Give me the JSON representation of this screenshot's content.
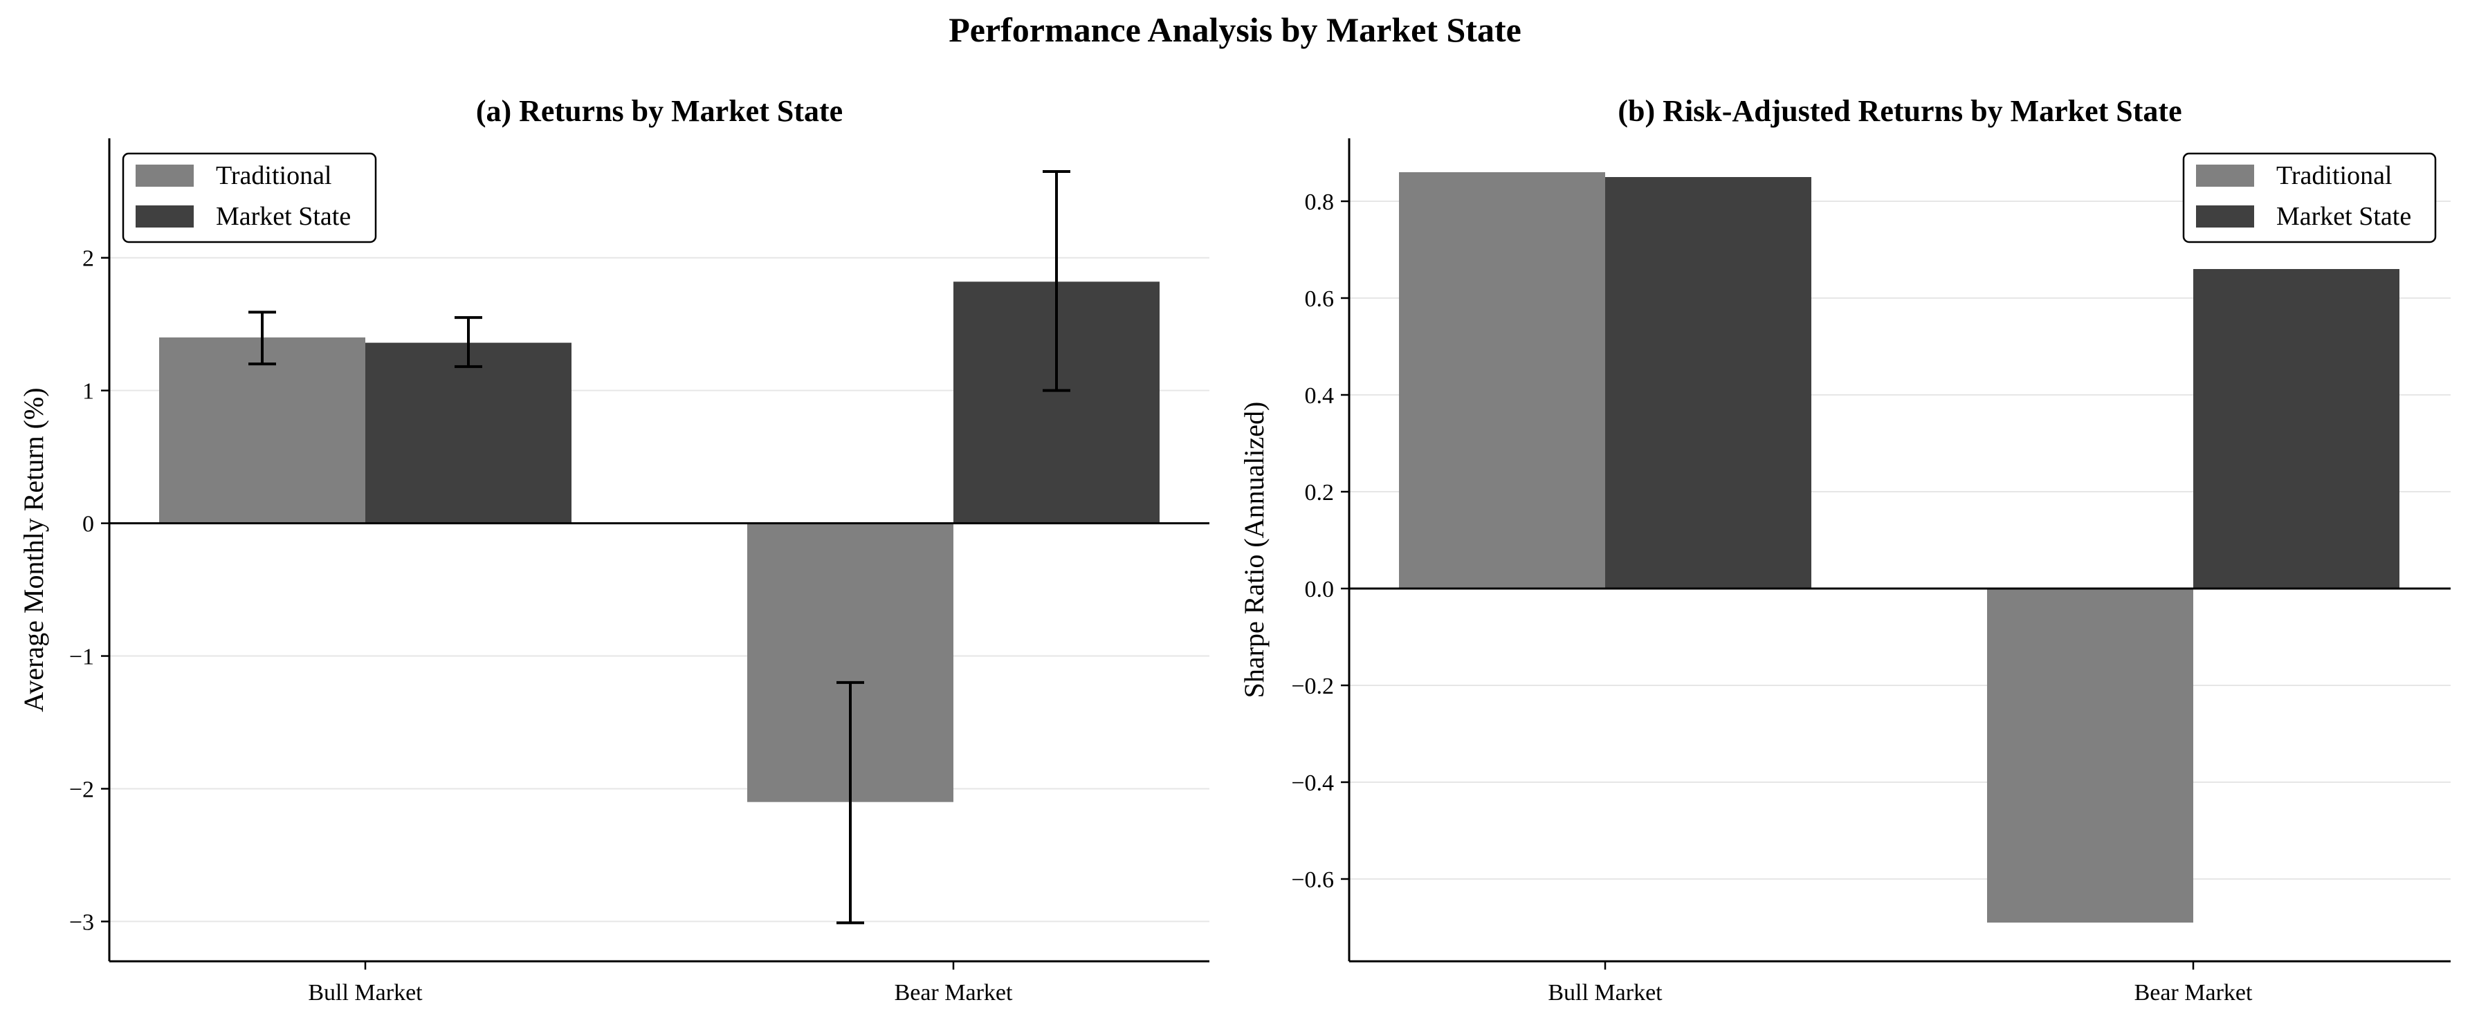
{
  "figure": {
    "title": "Performance Analysis by Market State"
  },
  "colors": {
    "traditional": "#808080",
    "market_state": "#404040",
    "grid": "#e6e6e6",
    "axis": "#000000"
  },
  "chart_data": [
    {
      "type": "bar",
      "title": "(a) Returns by Market State",
      "xlabel": "",
      "ylabel": "Average Monthly Return (%)",
      "categories": [
        "Bull Market",
        "Bear Market"
      ],
      "series": [
        {
          "name": "Traditional",
          "color": "#808080",
          "values": [
            1.4,
            -2.1
          ],
          "error_low": [
            1.2,
            -3.01
          ],
          "error_high": [
            1.59,
            -1.2
          ]
        },
        {
          "name": "Market State",
          "color": "#404040",
          "values": [
            1.36,
            1.82
          ],
          "error_low": [
            1.18,
            1.0
          ],
          "error_high": [
            1.55,
            2.65
          ]
        }
      ],
      "ylim": [
        -3.3,
        2.9
      ],
      "yticks": [
        2,
        1,
        0,
        -1,
        -2,
        -3
      ],
      "ytick_labels": [
        "2",
        "1",
        "0",
        "−1",
        "−2",
        "−3"
      ],
      "grid": "y",
      "legend_position": "top-left"
    },
    {
      "type": "bar",
      "title": "(b) Risk-Adjusted Returns by Market State",
      "xlabel": "",
      "ylabel": "Sharpe Ratio (Annualized)",
      "categories": [
        "Bull Market",
        "Bear Market"
      ],
      "series": [
        {
          "name": "Traditional",
          "color": "#808080",
          "values": [
            0.86,
            -0.69
          ]
        },
        {
          "name": "Market State",
          "color": "#404040",
          "values": [
            0.85,
            0.66
          ]
        }
      ],
      "ylim": [
        -0.77,
        0.93
      ],
      "yticks": [
        0.8,
        0.6,
        0.4,
        0.2,
        0.0,
        -0.2,
        -0.4,
        -0.6
      ],
      "ytick_labels": [
        "0.8",
        "0.6",
        "0.4",
        "0.2",
        "0.0",
        "−0.2",
        "−0.4",
        "−0.6"
      ],
      "grid": "y",
      "legend_position": "top-right"
    }
  ]
}
